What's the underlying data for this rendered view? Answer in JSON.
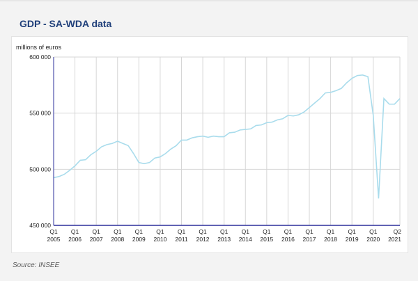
{
  "page": {
    "title": "GDP - SA-WDA data",
    "source": "Source: INSEE"
  },
  "chart_data": {
    "type": "line",
    "title": "GDP - SA-WDA data",
    "ylabel": "millions of euros",
    "xlabel": "",
    "ylim": [
      450000,
      600000
    ],
    "y_ticks": [
      450000,
      500000,
      550000,
      600000
    ],
    "y_tick_labels": [
      "450 000",
      "500 000",
      "550 000",
      "600 000"
    ],
    "x_tick_labels": [
      [
        "Q1",
        "2005"
      ],
      [
        "Q1",
        "2006"
      ],
      [
        "Q1",
        "2007"
      ],
      [
        "Q1",
        "2008"
      ],
      [
        "Q1",
        "2009"
      ],
      [
        "Q1",
        "2010"
      ],
      [
        "Q1",
        "2011"
      ],
      [
        "Q1",
        "2012"
      ],
      [
        "Q1",
        "2013"
      ],
      [
        "Q1",
        "2014"
      ],
      [
        "Q1",
        "2015"
      ],
      [
        "Q1",
        "2016"
      ],
      [
        "Q1",
        "2017"
      ],
      [
        "Q1",
        "2018"
      ],
      [
        "Q1",
        "2019"
      ],
      [
        "Q1",
        "2020"
      ],
      [
        "Q2",
        "2021"
      ]
    ],
    "grid": true,
    "line_color": "#a9dcec",
    "x": [
      "2005Q1",
      "2005Q2",
      "2005Q3",
      "2005Q4",
      "2006Q1",
      "2006Q2",
      "2006Q3",
      "2006Q4",
      "2007Q1",
      "2007Q2",
      "2007Q3",
      "2007Q4",
      "2008Q1",
      "2008Q2",
      "2008Q3",
      "2008Q4",
      "2009Q1",
      "2009Q2",
      "2009Q3",
      "2009Q4",
      "2010Q1",
      "2010Q2",
      "2010Q3",
      "2010Q4",
      "2011Q1",
      "2011Q2",
      "2011Q3",
      "2011Q4",
      "2012Q1",
      "2012Q2",
      "2012Q3",
      "2012Q4",
      "2013Q1",
      "2013Q2",
      "2013Q3",
      "2013Q4",
      "2014Q1",
      "2014Q2",
      "2014Q3",
      "2014Q4",
      "2015Q1",
      "2015Q2",
      "2015Q3",
      "2015Q4",
      "2016Q1",
      "2016Q2",
      "2016Q3",
      "2016Q4",
      "2017Q1",
      "2017Q2",
      "2017Q3",
      "2017Q4",
      "2018Q1",
      "2018Q2",
      "2018Q3",
      "2018Q4",
      "2019Q1",
      "2019Q2",
      "2019Q3",
      "2019Q4",
      "2020Q1",
      "2020Q2",
      "2020Q3",
      "2020Q4",
      "2021Q1",
      "2021Q2"
    ],
    "values": [
      492500,
      493500,
      495500,
      499000,
      503000,
      508000,
      508500,
      513000,
      516000,
      520000,
      522000,
      523000,
      525000,
      523000,
      521000,
      514000,
      506000,
      505000,
      506000,
      510000,
      511000,
      514000,
      518000,
      521000,
      526000,
      526000,
      528000,
      529000,
      529500,
      528500,
      529500,
      529000,
      529000,
      532500,
      533000,
      535000,
      535500,
      536000,
      539000,
      539500,
      541500,
      542000,
      544000,
      545000,
      548000,
      547500,
      548500,
      551000,
      555000,
      559000,
      563000,
      568000,
      568500,
      570000,
      572000,
      577000,
      581000,
      583500,
      584000,
      582500,
      548000,
      474000,
      563000,
      558000,
      558000,
      563000
    ]
  }
}
